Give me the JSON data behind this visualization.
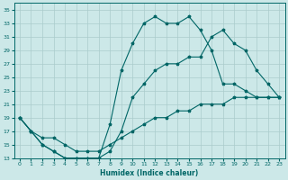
{
  "xlabel": "Humidex (Indice chaleur)",
  "background_color": "#cce8e8",
  "grid_color": "#aacccc",
  "line_color": "#006666",
  "xlim": [
    -0.5,
    23.5
  ],
  "ylim": [
    13,
    36
  ],
  "xticks": [
    0,
    1,
    2,
    3,
    4,
    5,
    6,
    7,
    8,
    9,
    10,
    11,
    12,
    13,
    14,
    15,
    16,
    17,
    18,
    19,
    20,
    21,
    22,
    23
  ],
  "yticks": [
    13,
    15,
    17,
    19,
    21,
    23,
    25,
    27,
    29,
    31,
    33,
    35
  ],
  "line1_x": [
    0,
    1,
    2,
    3,
    4,
    5,
    6,
    7,
    8,
    9,
    10,
    11,
    12,
    13,
    14,
    15,
    16,
    17,
    18,
    19,
    20,
    21,
    22,
    23
  ],
  "line1_y": [
    19,
    17,
    15,
    14,
    13,
    13,
    13,
    13,
    18,
    26,
    30,
    33,
    34,
    33,
    33,
    34,
    32,
    29,
    24,
    24,
    23,
    22,
    22,
    22
  ],
  "line2_x": [
    0,
    1,
    2,
    3,
    4,
    5,
    6,
    7,
    8,
    9,
    10,
    11,
    12,
    13,
    14,
    15,
    16,
    17,
    18,
    19,
    20,
    21,
    22,
    23
  ],
  "line2_y": [
    19,
    17,
    15,
    14,
    13,
    13,
    13,
    13,
    14,
    17,
    22,
    24,
    26,
    27,
    27,
    28,
    28,
    31,
    32,
    30,
    29,
    26,
    24,
    22
  ],
  "line3_x": [
    0,
    1,
    2,
    3,
    4,
    5,
    6,
    7,
    8,
    9,
    10,
    11,
    12,
    13,
    14,
    15,
    16,
    17,
    18,
    19,
    20,
    21,
    22,
    23
  ],
  "line3_y": [
    19,
    17,
    16,
    16,
    15,
    14,
    14,
    14,
    15,
    16,
    17,
    18,
    19,
    19,
    20,
    20,
    21,
    21,
    21,
    22,
    22,
    22,
    22,
    22
  ]
}
